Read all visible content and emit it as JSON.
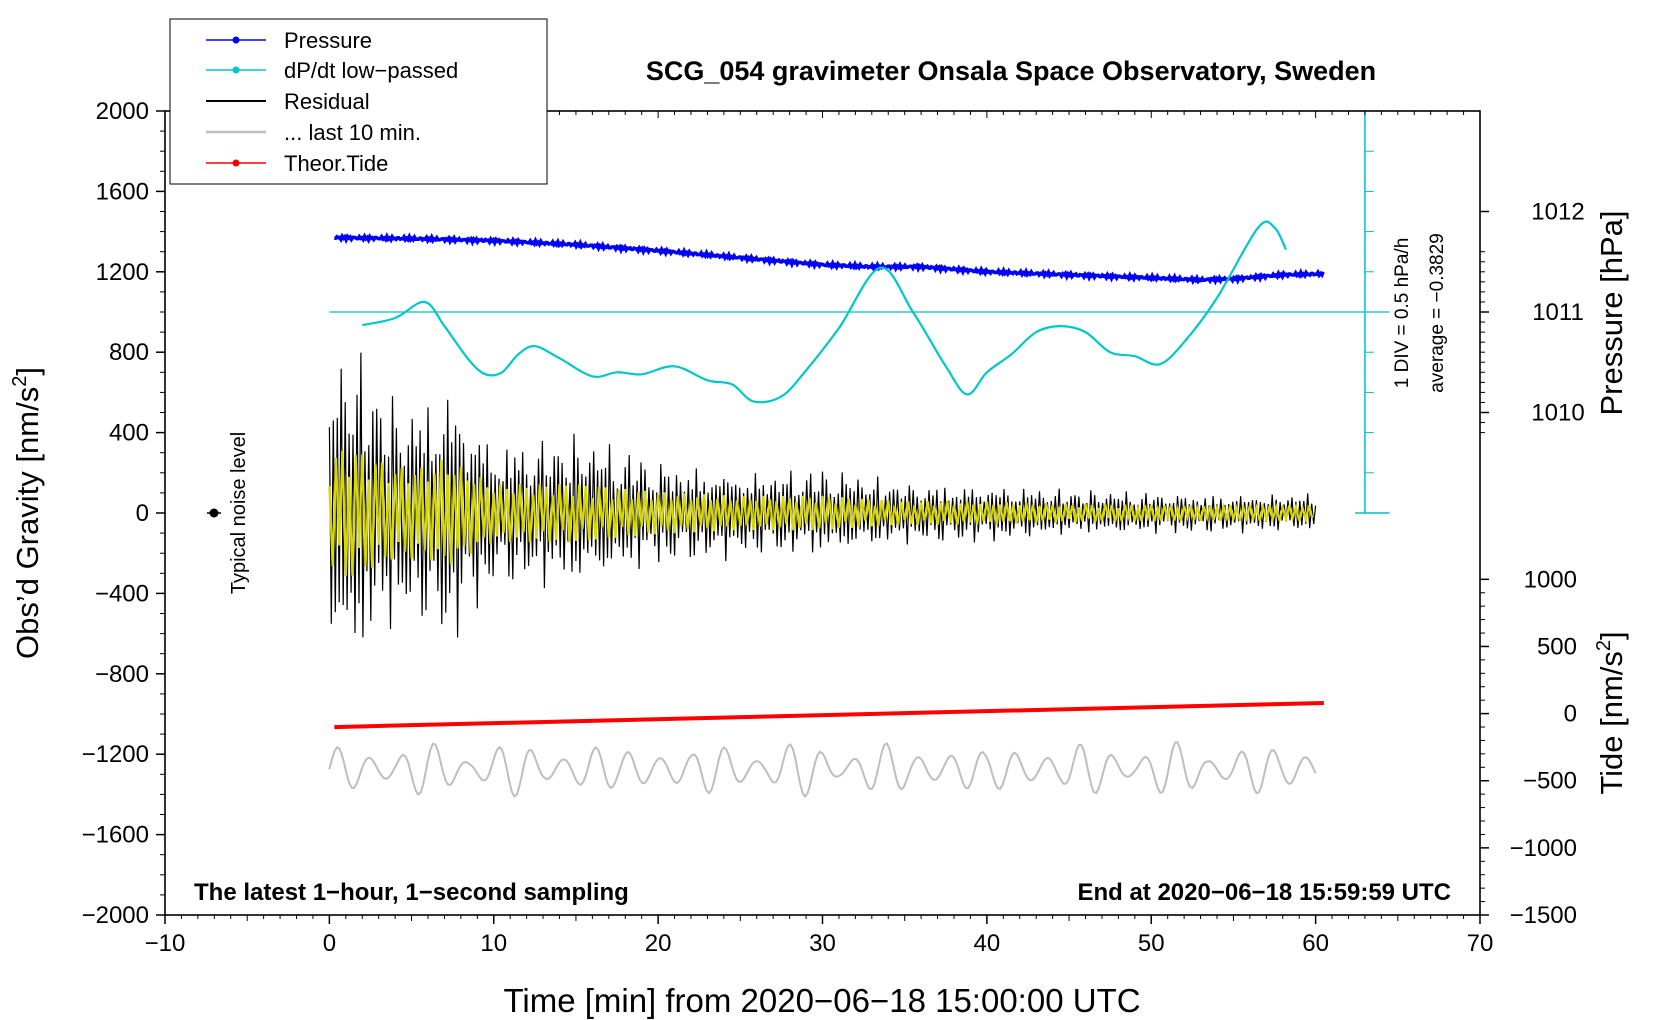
{
  "chart_data": {
    "type": "line",
    "title": "SCG_054 gravimeter Onsala Space Observatory, Sweden",
    "xlabel": "Time [min] from 2020−06−18 15:00:00 UTC",
    "ylabel_left": "Obs’d Gravity [nm/s²]",
    "ylabel_left_base": "Obs’d Gravity [nm/s",
    "ylabel_left_sup": "2",
    "ylabel_left_end": "]",
    "ylabel_pressure": "Pressure [hPa]",
    "ylabel_tide_base": "Tide [nm/s",
    "ylabel_tide_sup": "2",
    "ylabel_tide_end": "]",
    "xlim": [
      -10,
      70
    ],
    "ylim_left": [
      -2000,
      2000
    ],
    "x_ticks": [
      -10,
      0,
      10,
      20,
      30,
      40,
      50,
      60,
      70
    ],
    "x_tick_labels": [
      "−10",
      "0",
      "10",
      "20",
      "30",
      "40",
      "50",
      "60",
      "70"
    ],
    "y_left_ticks": [
      2000,
      1600,
      1200,
      800,
      400,
      0,
      -400,
      -800,
      -1200,
      -1600,
      -2000
    ],
    "y_left_tick_labels": [
      "2000",
      "1600",
      "1200",
      "800",
      "400",
      "0",
      "−400",
      "−800",
      "−1200",
      "−1600",
      "−2000"
    ],
    "pressure_axis": {
      "ticks": [
        1012,
        1011,
        1010
      ],
      "tick_labels": [
        "1012",
        "1011",
        "1010"
      ],
      "gravity_equiv": {
        "1010": 500,
        "1011": 1000,
        "1012": 1500
      }
    },
    "tide_axis": {
      "ticks": [
        1000,
        500,
        0,
        -500,
        -1000,
        -1500
      ],
      "tick_labels": [
        "1000",
        "500",
        "0",
        "−500",
        "−1000",
        "−1500"
      ],
      "gravity_equiv": {
        "1000": -330,
        "-1500": -2000
      }
    },
    "legend": {
      "position": "top-left",
      "entries": [
        {
          "label": "Pressure",
          "color": "#0000ff",
          "marker": true
        },
        {
          "label": "dP/dt low−passed",
          "color": "#00c8c8",
          "marker": true
        },
        {
          "label": "Residual",
          "color": "#000000",
          "marker": false
        },
        {
          "label": "... last 10 min.",
          "color": "#bebebe",
          "marker": false
        },
        {
          "label": "Theor.Tide",
          "color": "#ff0000",
          "marker": true
        }
      ]
    },
    "dpdt_scale": {
      "label1": "1 DIV = 0.5 hPa/h",
      "label2": "average = −0.3829",
      "x": 63,
      "y_range": [
        0,
        2000
      ],
      "reference_level": 1000
    },
    "noise_marker": {
      "label": "Typical noise level",
      "x": -7,
      "y": 0
    },
    "footer_left": "The latest 1−hour, 1−second sampling",
    "footer_right": "End at 2020−06−18 15:59:59 UTC",
    "series": [
      {
        "name": "Pressure",
        "color": "#0000ff",
        "units": "gravity-equivalent",
        "x": [
          0.3,
          5,
          10,
          15,
          20,
          25,
          30,
          33,
          36,
          40,
          45,
          50,
          53,
          55,
          58,
          60.5
        ],
        "y": [
          1370,
          1365,
          1355,
          1335,
          1305,
          1270,
          1235,
          1225,
          1225,
          1200,
          1185,
          1170,
          1160,
          1165,
          1185,
          1190
        ]
      },
      {
        "name": "dP/dt low-passed",
        "color": "#00c8c8",
        "units": "gravity-equivalent",
        "x": [
          2,
          4,
          5.8,
          7,
          8.5,
          9.5,
          10.5,
          11.5,
          12.5,
          14,
          16,
          17.5,
          19,
          21,
          23,
          24.5,
          25.8,
          27.5,
          29,
          31,
          33.5,
          35.5,
          37.5,
          38.8,
          40,
          41.5,
          43,
          44.5,
          46,
          47.5,
          49,
          50.5,
          52,
          54,
          56.5,
          57.5,
          58.2
        ],
        "y": [
          935,
          970,
          1050,
          930,
          760,
          690,
          700,
          790,
          830,
          770,
          680,
          700,
          690,
          730,
          660,
          640,
          555,
          580,
          710,
          920,
          1220,
          1000,
          730,
          590,
          700,
          790,
          900,
          930,
          900,
          800,
          780,
          740,
          850,
          1070,
          1420,
          1420,
          1310
        ]
      },
      {
        "name": "Residual",
        "color": "#000000",
        "units": "nm/s2",
        "x": [
          0,
          1,
          2,
          4,
          6,
          7,
          10,
          15,
          20,
          25,
          30,
          35,
          40,
          45,
          50,
          55,
          60
        ],
        "y": [
          700,
          900,
          800,
          600,
          600,
          720,
          380,
          400,
          280,
          220,
          230,
          160,
          150,
          120,
          110,
          100,
          100
        ]
      },
      {
        "name": "... last 10 min.",
        "color": "#bebebe",
        "units": "gravity-equivalent",
        "x": [
          0,
          60
        ],
        "y": [
          -1275,
          -1275
        ],
        "amplitude": 140
      },
      {
        "name": "Theor.Tide",
        "color": "#ff0000",
        "units": "gravity-equivalent",
        "x": [
          0.3,
          60.5
        ],
        "y": [
          -1065,
          -945
        ]
      }
    ]
  }
}
